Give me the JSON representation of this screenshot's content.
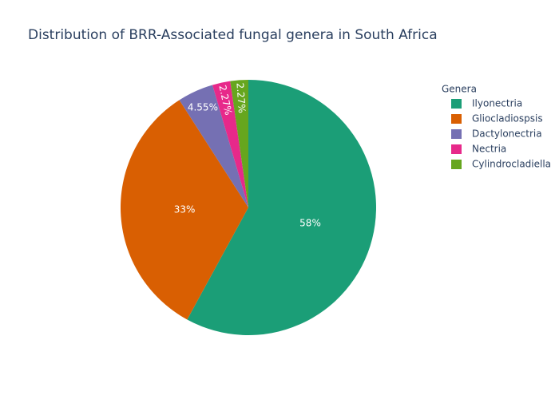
{
  "chart_data": {
    "type": "pie",
    "title": "Distribution of BRR-Associated fungal genera in South Africa",
    "legend_title": "Genera",
    "legend_position": "top-right",
    "categories": [
      "Ilyonectria",
      "Gliocladiospsis",
      "Dactylonectria",
      "Nectria",
      "Cylindrocladiella"
    ],
    "values": [
      58,
      33,
      4.55,
      2.27,
      2.27
    ],
    "value_labels": [
      "58%",
      "33%",
      "4.55%",
      "2.27%",
      "2.27%"
    ],
    "colors": [
      "#1b9e77",
      "#d95f02",
      "#7570b3",
      "#e7298a",
      "#66a61e"
    ]
  }
}
